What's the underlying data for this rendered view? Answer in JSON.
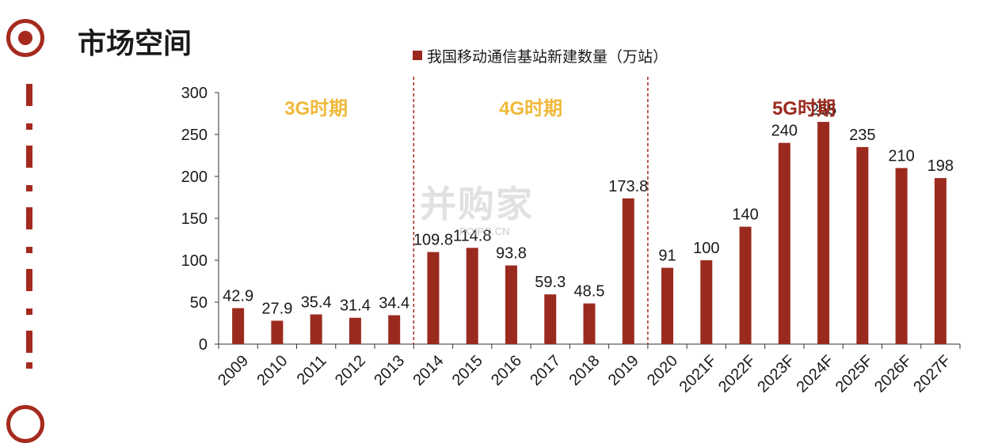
{
  "header": {
    "title": "市场空间"
  },
  "watermark": {
    "logo_text": "并购家",
    "site": "POIPO.CN"
  },
  "colors": {
    "accent": "#a52a1e",
    "bar": "#9b2a1e",
    "era_3g": "#f0b93a",
    "era_4g": "#f0b93a",
    "era_5g": "#9b2a1e"
  },
  "chart_data": {
    "type": "bar",
    "title": "",
    "xlabel": "",
    "ylabel": "",
    "legend": {
      "position": "top-right"
    },
    "ylim": [
      0,
      300
    ],
    "yticks": [
      0,
      50,
      100,
      150,
      200,
      250,
      300
    ],
    "grid": false,
    "categories": [
      "2009",
      "2010",
      "2011",
      "2012",
      "2013",
      "2014",
      "2015",
      "2016",
      "2017",
      "2018",
      "2019",
      "2020",
      "2021F",
      "2022F",
      "2023F",
      "2024F",
      "2025F",
      "2026F",
      "2027F"
    ],
    "series": [
      {
        "name": "我国移动通信基站新建数量（万站）",
        "values": [
          42.9,
          27.9,
          35.4,
          31.4,
          34.4,
          109.8,
          114.8,
          93.8,
          59.3,
          48.5,
          173.8,
          91,
          100,
          140,
          240,
          265,
          235,
          210,
          198
        ],
        "labels": [
          "42.9",
          "27.9",
          "35.4",
          "31.4",
          "34.4",
          "109.8",
          "114.8",
          "93.8",
          "59.3",
          "48.5",
          "173.8",
          "91",
          "100",
          "140",
          "240",
          "265",
          "235",
          "210",
          "198"
        ]
      }
    ],
    "eras": [
      {
        "label": "3G时期",
        "start": "2009",
        "end": "2013",
        "color": "#f0b93a"
      },
      {
        "label": "4G时期",
        "start": "2014",
        "end": "2019",
        "color": "#f0b93a"
      },
      {
        "label": "5G时期",
        "start": "2020",
        "end": "2027F",
        "color": "#9b2a1e"
      }
    ]
  }
}
